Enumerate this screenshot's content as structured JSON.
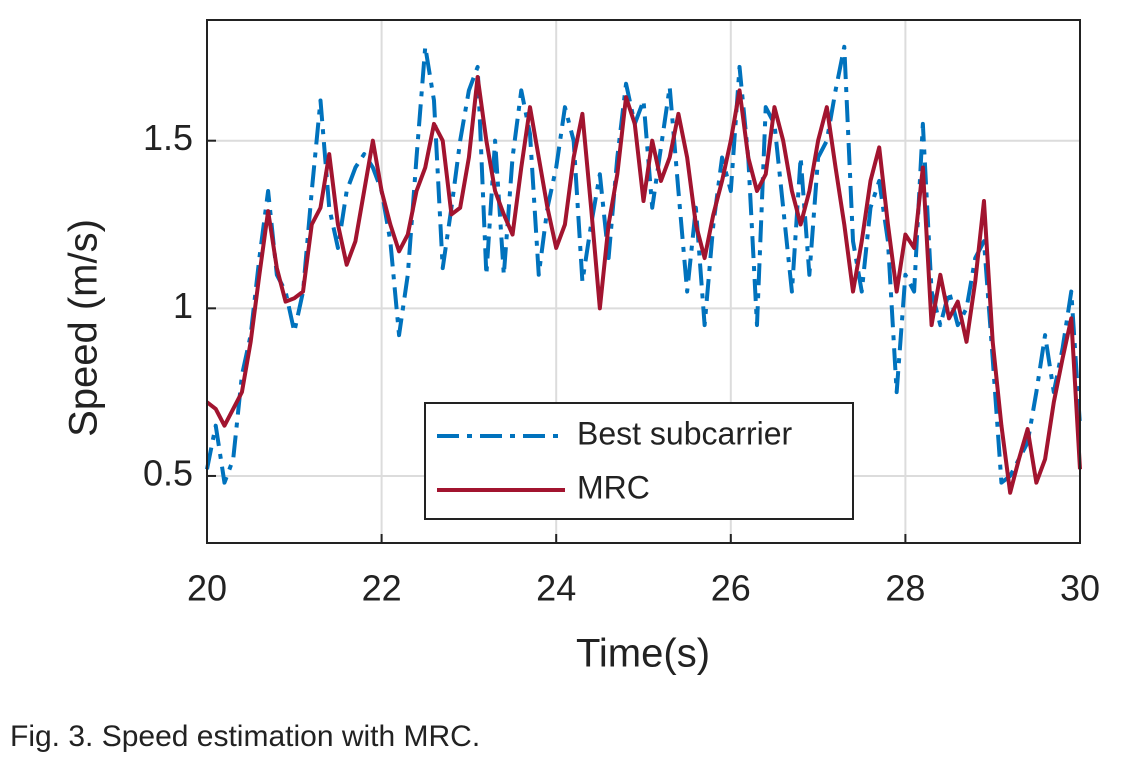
{
  "chart_data": {
    "type": "line",
    "xlabel": "Time(s)",
    "ylabel": "Speed (m/s)",
    "caption": "Fig. 3. Speed estimation with MRC.",
    "xlim": [
      20,
      30
    ],
    "ylim": [
      0.3,
      1.86
    ],
    "xticks": [
      20,
      22,
      24,
      26,
      28,
      30
    ],
    "yticks": [
      0.5,
      1,
      1.5
    ],
    "grid": true,
    "legend": "bottom-center",
    "x": [
      20,
      20.1,
      20.2,
      20.3,
      20.4,
      20.5,
      20.6,
      20.7,
      20.8,
      20.9,
      21,
      21.1,
      21.2,
      21.3,
      21.4,
      21.5,
      21.6,
      21.7,
      21.8,
      21.9,
      22,
      22.1,
      22.2,
      22.3,
      22.4,
      22.5,
      22.6,
      22.7,
      22.8,
      22.9,
      23,
      23.1,
      23.2,
      23.3,
      23.4,
      23.5,
      23.6,
      23.7,
      23.8,
      23.9,
      24,
      24.1,
      24.2,
      24.3,
      24.4,
      24.5,
      24.6,
      24.7,
      24.8,
      24.9,
      25,
      25.1,
      25.2,
      25.3,
      25.4,
      25.5,
      25.6,
      25.7,
      25.8,
      25.9,
      26,
      26.1,
      26.2,
      26.3,
      26.4,
      26.5,
      26.6,
      26.7,
      26.8,
      26.9,
      27,
      27.1,
      27.2,
      27.3,
      27.4,
      27.5,
      27.6,
      27.7,
      27.8,
      27.9,
      28,
      28.1,
      28.2,
      28.3,
      28.4,
      28.5,
      28.6,
      28.7,
      28.8,
      28.9,
      29,
      29.1,
      29.2,
      29.3,
      29.4,
      29.5,
      29.6,
      29.7,
      29.8,
      29.9,
      30
    ],
    "series": [
      {
        "name": "Best subcarrier",
        "color": "#0072bd",
        "style": "dashdot",
        "values": [
          0.52,
          0.65,
          0.48,
          0.55,
          0.8,
          0.92,
          1.15,
          1.35,
          1.1,
          1.05,
          0.93,
          1.05,
          1.35,
          1.62,
          1.3,
          1.18,
          1.35,
          1.42,
          1.46,
          1.42,
          1.35,
          1.2,
          0.92,
          1.1,
          1.45,
          1.78,
          1.62,
          1.12,
          1.3,
          1.5,
          1.65,
          1.72,
          1.1,
          1.5,
          1.1,
          1.45,
          1.65,
          1.52,
          1.1,
          1.3,
          1.42,
          1.6,
          1.5,
          1.08,
          1.25,
          1.4,
          1.15,
          1.45,
          1.67,
          1.55,
          1.62,
          1.3,
          1.48,
          1.66,
          1.35,
          1.05,
          1.3,
          0.95,
          1.25,
          1.45,
          1.35,
          1.72,
          1.45,
          0.95,
          1.6,
          1.55,
          1.3,
          1.05,
          1.45,
          1.1,
          1.45,
          1.5,
          1.65,
          1.78,
          1.2,
          1.05,
          1.3,
          1.38,
          1.2,
          0.75,
          1.1,
          1.05,
          1.55,
          1.05,
          0.95,
          1.05,
          0.95,
          1,
          1.15,
          1.2,
          0.85,
          0.48,
          0.5,
          0.55,
          0.6,
          0.75,
          0.92,
          0.75,
          0.88,
          1.05,
          0.65
        ]
      },
      {
        "name": "MRC",
        "color": "#a2142f",
        "style": "solid",
        "values": [
          0.72,
          0.7,
          0.65,
          0.7,
          0.75,
          0.9,
          1.1,
          1.29,
          1.12,
          1.02,
          1.03,
          1.05,
          1.25,
          1.3,
          1.46,
          1.25,
          1.13,
          1.2,
          1.35,
          1.5,
          1.35,
          1.25,
          1.17,
          1.22,
          1.35,
          1.42,
          1.55,
          1.5,
          1.28,
          1.3,
          1.45,
          1.69,
          1.5,
          1.35,
          1.28,
          1.22,
          1.42,
          1.6,
          1.45,
          1.3,
          1.18,
          1.25,
          1.45,
          1.58,
          1.3,
          1,
          1.25,
          1.4,
          1.63,
          1.55,
          1.32,
          1.5,
          1.38,
          1.45,
          1.58,
          1.45,
          1.25,
          1.15,
          1.28,
          1.38,
          1.5,
          1.65,
          1.45,
          1.35,
          1.4,
          1.6,
          1.5,
          1.35,
          1.25,
          1.35,
          1.5,
          1.6,
          1.42,
          1.25,
          1.05,
          1.2,
          1.38,
          1.48,
          1.25,
          1.05,
          1.22,
          1.18,
          1.42,
          0.95,
          1.1,
          0.97,
          1.02,
          0.9,
          1.08,
          1.32,
          0.9,
          0.65,
          0.45,
          0.55,
          0.64,
          0.48,
          0.55,
          0.72,
          0.85,
          0.97,
          0.52
        ]
      }
    ]
  }
}
